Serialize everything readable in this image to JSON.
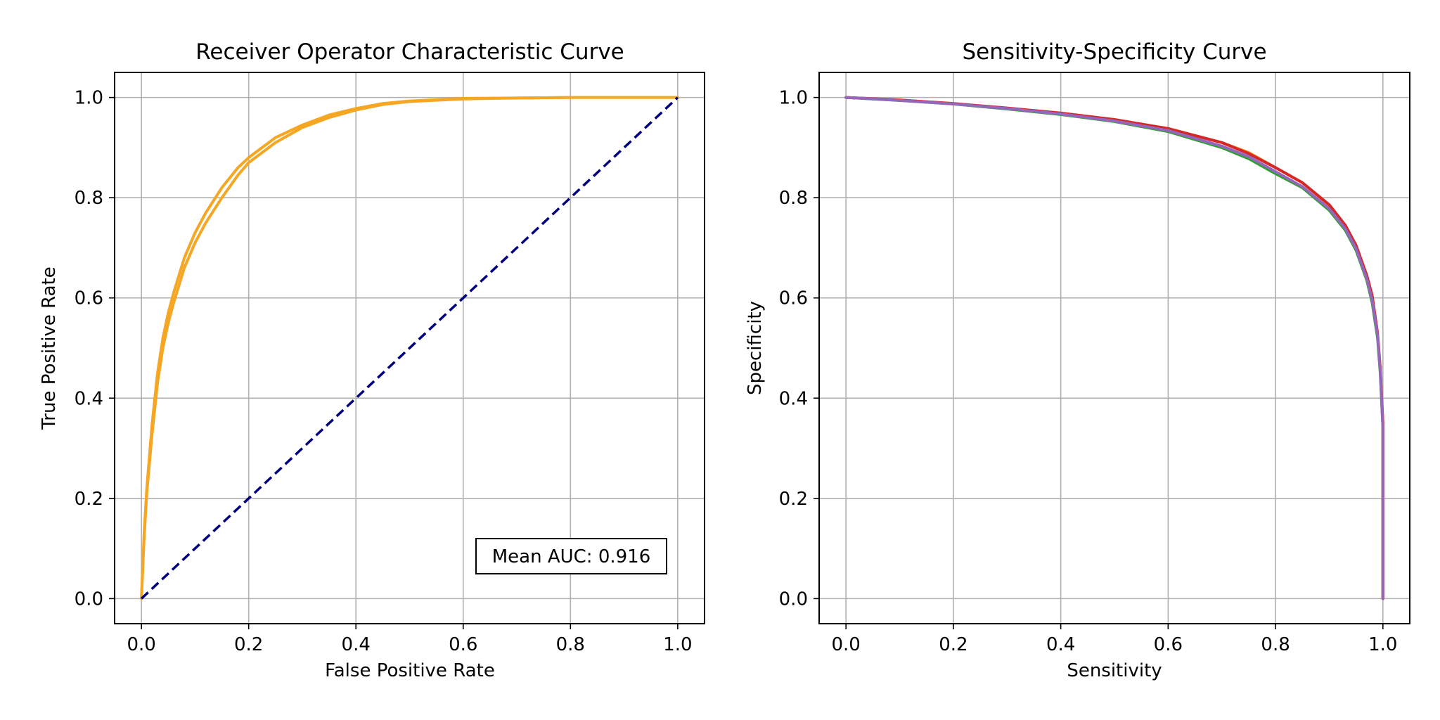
{
  "chart_data": [
    {
      "type": "line",
      "title": "Receiver Operator Characteristic Curve",
      "xlabel": "False Positive Rate",
      "ylabel": "True Positive Rate",
      "xlim": [
        -0.05,
        1.05
      ],
      "ylim": [
        -0.05,
        1.05
      ],
      "xticks": [
        "0.0",
        "0.2",
        "0.4",
        "0.6",
        "0.8",
        "1.0"
      ],
      "yticks": [
        "0.0",
        "0.2",
        "0.4",
        "0.6",
        "0.8",
        "1.0"
      ],
      "grid": true,
      "annotation": "Mean AUC: 0.916",
      "annotation_placement": "bottom-right",
      "series": [
        {
          "color": "#f5a623",
          "style": "solid",
          "x": [
            0,
            0.005,
            0.01,
            0.02,
            0.03,
            0.04,
            0.05,
            0.06,
            0.08,
            0.1,
            0.12,
            0.15,
            0.18,
            0.2,
            0.25,
            0.3,
            0.35,
            0.4,
            0.45,
            0.5,
            0.6,
            0.7,
            0.8,
            0.9,
            1.0
          ],
          "y": [
            0,
            0.13,
            0.22,
            0.35,
            0.45,
            0.52,
            0.57,
            0.61,
            0.68,
            0.73,
            0.77,
            0.82,
            0.86,
            0.88,
            0.92,
            0.945,
            0.965,
            0.978,
            0.988,
            0.993,
            0.998,
            0.999,
            1.0,
            1.0,
            1.0
          ]
        },
        {
          "color": "#f5a623",
          "style": "solid",
          "x": [
            0,
            0.005,
            0.01,
            0.02,
            0.03,
            0.04,
            0.05,
            0.06,
            0.08,
            0.1,
            0.12,
            0.15,
            0.18,
            0.2,
            0.25,
            0.3,
            0.35,
            0.4,
            0.45,
            0.5,
            0.6,
            0.7,
            0.8,
            0.9,
            1.0
          ],
          "y": [
            0,
            0.12,
            0.21,
            0.33,
            0.43,
            0.5,
            0.55,
            0.59,
            0.66,
            0.71,
            0.75,
            0.8,
            0.845,
            0.87,
            0.91,
            0.94,
            0.96,
            0.975,
            0.986,
            0.992,
            0.997,
            0.999,
            1.0,
            1.0,
            1.0
          ]
        },
        {
          "color": "#000080",
          "style": "dashed",
          "x": [
            0,
            1.0
          ],
          "y": [
            0,
            1.0
          ]
        }
      ]
    },
    {
      "type": "line",
      "title": "Sensitivity-Specificity Curve",
      "xlabel": "Sensitivity",
      "ylabel": "Specificity",
      "xlim": [
        -0.05,
        1.05
      ],
      "ylim": [
        -0.05,
        1.05
      ],
      "xticks": [
        "0.0",
        "0.2",
        "0.4",
        "0.6",
        "0.8",
        "1.0"
      ],
      "yticks": [
        "0.0",
        "0.2",
        "0.4",
        "0.6",
        "0.8",
        "1.0"
      ],
      "grid": true,
      "series": [
        {
          "color": "#ff7f0e",
          "x": [
            0,
            0.1,
            0.2,
            0.3,
            0.4,
            0.5,
            0.6,
            0.7,
            0.75,
            0.8,
            0.85,
            0.9,
            0.93,
            0.95,
            0.97,
            0.98,
            0.99,
            0.995,
            1.0,
            1.0
          ],
          "y": [
            1.0,
            0.995,
            0.988,
            0.978,
            0.968,
            0.955,
            0.938,
            0.91,
            0.89,
            0.86,
            0.83,
            0.785,
            0.74,
            0.7,
            0.64,
            0.6,
            0.53,
            0.46,
            0.35,
            0.0
          ]
        },
        {
          "color": "#2ca02c",
          "x": [
            0,
            0.1,
            0.2,
            0.3,
            0.4,
            0.5,
            0.6,
            0.7,
            0.75,
            0.8,
            0.85,
            0.9,
            0.93,
            0.95,
            0.97,
            0.98,
            0.99,
            0.995,
            1.0,
            1.0
          ],
          "y": [
            1.0,
            0.994,
            0.987,
            0.977,
            0.966,
            0.952,
            0.932,
            0.9,
            0.878,
            0.848,
            0.82,
            0.775,
            0.735,
            0.695,
            0.635,
            0.59,
            0.52,
            0.45,
            0.34,
            0.0
          ]
        },
        {
          "color": "#d62728",
          "x": [
            0,
            0.1,
            0.2,
            0.3,
            0.4,
            0.5,
            0.6,
            0.7,
            0.75,
            0.8,
            0.85,
            0.9,
            0.93,
            0.95,
            0.97,
            0.98,
            0.99,
            0.995,
            1.0,
            1.0
          ],
          "y": [
            1.0,
            0.995,
            0.988,
            0.979,
            0.969,
            0.956,
            0.938,
            0.91,
            0.888,
            0.86,
            0.83,
            0.786,
            0.745,
            0.705,
            0.645,
            0.605,
            0.53,
            0.46,
            0.35,
            0.0
          ]
        },
        {
          "color": "#9467bd",
          "x": [
            0,
            0.1,
            0.2,
            0.3,
            0.4,
            0.5,
            0.6,
            0.7,
            0.75,
            0.8,
            0.85,
            0.9,
            0.93,
            0.95,
            0.97,
            0.98,
            0.99,
            0.995,
            1.0,
            1.0
          ],
          "y": [
            1.0,
            0.994,
            0.987,
            0.978,
            0.967,
            0.953,
            0.934,
            0.903,
            0.882,
            0.852,
            0.822,
            0.778,
            0.738,
            0.698,
            0.638,
            0.595,
            0.525,
            0.455,
            0.34,
            0.0
          ]
        }
      ]
    }
  ]
}
